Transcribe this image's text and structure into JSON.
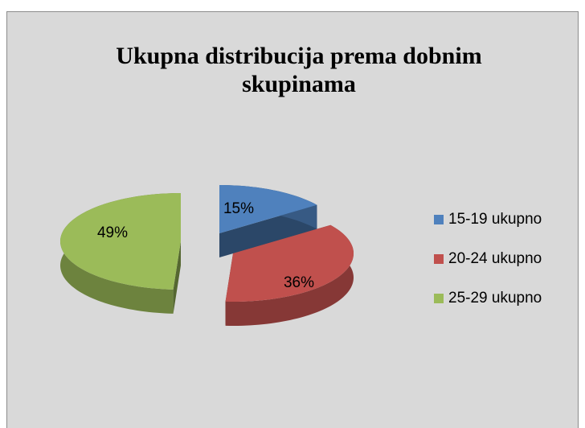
{
  "chart_data": {
    "type": "pie",
    "title": "Ukupna distribucija prema dobnim skupinama",
    "categories": [
      "15-19 ukupno",
      "20-24 ukupno",
      "25-29 ukupno"
    ],
    "values": [
      15,
      36,
      49
    ],
    "value_labels": [
      "15%",
      "36%",
      "49%"
    ],
    "colors": [
      "#4f81bd",
      "#c0504d",
      "#9bbb59"
    ],
    "legend": "right"
  }
}
